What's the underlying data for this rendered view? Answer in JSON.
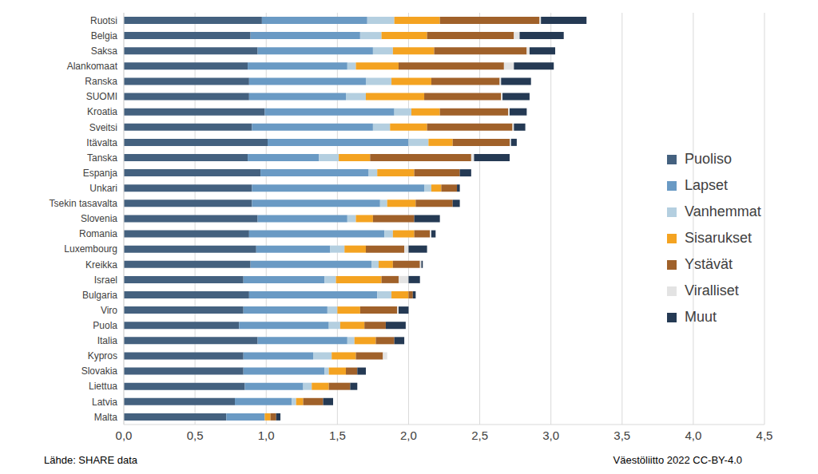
{
  "chart_data": {
    "type": "bar",
    "orientation": "horizontal",
    "stacked": true,
    "grid": true,
    "legend": "right",
    "categories": [
      "Ruotsi",
      "Belgia",
      "Saksa",
      "Alankomaat",
      "Ranska",
      "SUOMI",
      "Kroatia",
      "Sveitsi",
      "Itävalta",
      "Tanska",
      "Espanja",
      "Unkari",
      "Tsekin tasavalta",
      "Slovenia",
      "Romania",
      "Luxembourg",
      "Kreikka",
      "Israel",
      "Bulgaria",
      "Viro",
      "Puola",
      "Italia",
      "Kypros",
      "Slovakia",
      "Liettua",
      "Latvia",
      "Malta"
    ],
    "series": [
      {
        "name": "Puoliso",
        "color": "#44617f",
        "values": [
          0.97,
          0.89,
          0.94,
          0.87,
          0.88,
          0.88,
          0.99,
          0.9,
          1.01,
          0.87,
          0.96,
          0.9,
          0.9,
          0.94,
          0.88,
          0.93,
          0.89,
          0.84,
          0.88,
          0.84,
          0.81,
          0.94,
          0.84,
          0.84,
          0.85,
          0.78,
          0.72
        ]
      },
      {
        "name": "Lapset",
        "color": "#6a9ac4",
        "values": [
          0.74,
          0.77,
          0.81,
          0.7,
          0.82,
          0.68,
          0.91,
          0.85,
          0.99,
          0.5,
          0.76,
          1.21,
          0.9,
          0.63,
          0.95,
          0.52,
          0.85,
          0.57,
          0.9,
          0.59,
          0.63,
          0.63,
          0.49,
          0.57,
          0.41,
          0.4,
          0.27
        ]
      },
      {
        "name": "Vanhemmat",
        "color": "#b4cfe0",
        "values": [
          0.19,
          0.15,
          0.14,
          0.06,
          0.18,
          0.14,
          0.12,
          0.12,
          0.14,
          0.14,
          0.06,
          0.05,
          0.05,
          0.06,
          0.06,
          0.1,
          0.05,
          0.08,
          0.1,
          0.07,
          0.08,
          0.05,
          0.13,
          0.03,
          0.06,
          0.03,
          0
        ]
      },
      {
        "name": "Sisarukset",
        "color": "#f4a321",
        "values": [
          0.32,
          0.32,
          0.29,
          0.3,
          0.28,
          0.41,
          0.2,
          0.26,
          0.17,
          0.22,
          0.26,
          0.07,
          0.2,
          0.12,
          0.15,
          0.15,
          0.1,
          0.32,
          0.12,
          0.16,
          0.17,
          0.15,
          0.17,
          0.12,
          0.12,
          0.05,
          0.04
        ]
      },
      {
        "name": "Ystävät",
        "color": "#a0612a",
        "values": [
          0.7,
          0.61,
          0.65,
          0.74,
          0.48,
          0.54,
          0.48,
          0.6,
          0.4,
          0.71,
          0.32,
          0.11,
          0.26,
          0.29,
          0.11,
          0.27,
          0.19,
          0.12,
          0.03,
          0.26,
          0.15,
          0.13,
          0.19,
          0.08,
          0.15,
          0.14,
          0.04
        ]
      },
      {
        "name": "Viralliset",
        "color": "#e3e3e3",
        "values": [
          0.01,
          0.04,
          0.02,
          0.07,
          0.01,
          0.01,
          0.01,
          0.01,
          0.01,
          0.02,
          0,
          0,
          0,
          0,
          0.01,
          0.03,
          0.01,
          0.07,
          0,
          0.01,
          0,
          0,
          0.03,
          0,
          0,
          0,
          0
        ]
      },
      {
        "name": "Muut",
        "color": "#253a54",
        "values": [
          0.32,
          0.31,
          0.18,
          0.28,
          0.21,
          0.19,
          0.12,
          0.08,
          0.04,
          0.25,
          0.08,
          0.02,
          0.05,
          0.18,
          0.03,
          0.13,
          0.01,
          0.08,
          0.02,
          0.07,
          0.14,
          0.07,
          0,
          0.06,
          0.05,
          0.07,
          0.03
        ]
      }
    ],
    "xlim": [
      0,
      4.5
    ],
    "xticks": [
      {
        "value": 0,
        "label": "0,0"
      },
      {
        "value": 0.5,
        "label": "0,5"
      },
      {
        "value": 1,
        "label": "1,0"
      },
      {
        "value": 1.5,
        "label": "1,5"
      },
      {
        "value": 2,
        "label": "2,0"
      },
      {
        "value": 2.5,
        "label": "2,5"
      },
      {
        "value": 3,
        "label": "3,0"
      },
      {
        "value": 3.5,
        "label": "3,5"
      },
      {
        "value": 4,
        "label": "4,0"
      },
      {
        "value": 4.5,
        "label": "4,5"
      }
    ],
    "annotations": [
      "Lähde: SHARE data",
      "Väestöliitto 2022 CC-BY-4.0"
    ]
  }
}
